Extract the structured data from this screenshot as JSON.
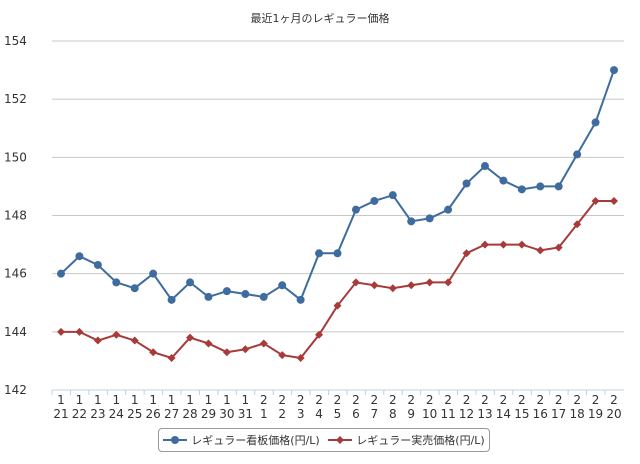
{
  "chart_data": {
    "type": "line",
    "title": "最近1ヶ月のレギュラー価格",
    "xlabel": "",
    "ylabel": "",
    "ylim": [
      142,
      154
    ],
    "yticks": [
      142,
      144,
      146,
      148,
      150,
      152,
      154
    ],
    "grid": true,
    "legend_position": "bottom",
    "categories": [
      [
        "1",
        "21"
      ],
      [
        "1",
        "22"
      ],
      [
        "1",
        "23"
      ],
      [
        "1",
        "24"
      ],
      [
        "1",
        "25"
      ],
      [
        "1",
        "26"
      ],
      [
        "1",
        "27"
      ],
      [
        "1",
        "28"
      ],
      [
        "1",
        "29"
      ],
      [
        "1",
        "30"
      ],
      [
        "1",
        "31"
      ],
      [
        "2",
        "1"
      ],
      [
        "2",
        "2"
      ],
      [
        "2",
        "3"
      ],
      [
        "2",
        "4"
      ],
      [
        "2",
        "5"
      ],
      [
        "2",
        "6"
      ],
      [
        "2",
        "7"
      ],
      [
        "2",
        "8"
      ],
      [
        "2",
        "9"
      ],
      [
        "2",
        "10"
      ],
      [
        "2",
        "11"
      ],
      [
        "2",
        "12"
      ],
      [
        "2",
        "13"
      ],
      [
        "2",
        "14"
      ],
      [
        "2",
        "15"
      ],
      [
        "2",
        "16"
      ],
      [
        "2",
        "17"
      ],
      [
        "2",
        "18"
      ],
      [
        "2",
        "19"
      ],
      [
        "2",
        "20"
      ]
    ],
    "series": [
      {
        "name": "レギュラー看板価格(円/L)",
        "color": "#3f6c9e",
        "marker": "circle",
        "values": [
          146.0,
          146.6,
          146.3,
          145.7,
          145.5,
          146.0,
          145.1,
          145.7,
          145.2,
          145.4,
          145.3,
          145.2,
          145.6,
          145.1,
          146.7,
          146.7,
          148.2,
          148.5,
          148.7,
          147.8,
          147.9,
          148.2,
          149.1,
          149.7,
          149.2,
          148.9,
          149.0,
          149.0,
          150.1,
          151.2,
          153.0
        ]
      },
      {
        "name": "レギュラー実売価格(円/L)",
        "color": "#a83a3a",
        "marker": "diamond",
        "values": [
          144.0,
          144.0,
          143.7,
          143.9,
          143.7,
          143.3,
          143.1,
          143.8,
          143.6,
          143.3,
          143.4,
          143.6,
          143.2,
          143.1,
          143.9,
          144.9,
          145.7,
          145.6,
          145.5,
          145.6,
          145.7,
          145.7,
          146.7,
          147.0,
          147.0,
          147.0,
          146.8,
          146.9,
          147.7,
          148.5,
          148.5
        ]
      }
    ]
  }
}
